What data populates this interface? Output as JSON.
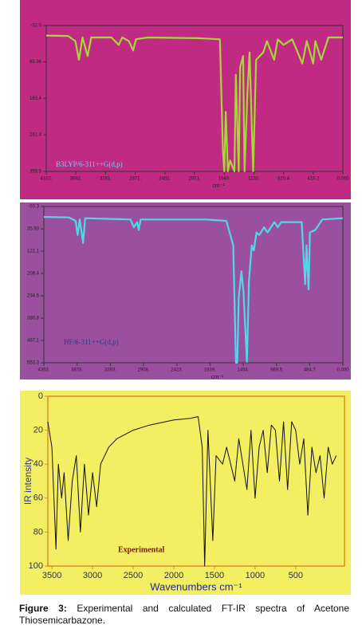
{
  "chart_data": [
    {
      "type": "line",
      "annotation": "B3LYP/6-311++G(d,p)",
      "x_label": "cm⁻¹",
      "color": "#a6d63a",
      "background": "#c02a83",
      "xlim": [
        4102,
        0
      ],
      "ylim": [
        359.5,
        -32
      ],
      "xticks": [
        {
          "value": 4102,
          "label": "4102."
        },
        {
          "value": 3692,
          "label": "3692."
        },
        {
          "value": 3281,
          "label": "3281."
        },
        {
          "value": 2871,
          "label": "2871."
        },
        {
          "value": 2461,
          "label": "2461."
        },
        {
          "value": 2051,
          "label": "2051."
        },
        {
          "value": 1640,
          "label": "1640."
        },
        {
          "value": 1230,
          "label": "1230."
        },
        820.4,
        410.2,
        {
          "value": 0,
          "label": "0.000"
        }
      ],
      "yticks": [
        {
          "value": -32,
          "label": "-32.0"
        },
        65.36,
        163.4,
        261.4,
        359.5
      ],
      "x": [
        4102,
        3800,
        3700,
        3650,
        3600,
        3530,
        3480,
        3200,
        3100,
        3050,
        2960,
        2900,
        2860,
        2700,
        2000,
        1700,
        1660,
        1640,
        1620,
        1590,
        1560,
        1500,
        1480,
        1440,
        1420,
        1380,
        1360,
        1320,
        1290,
        1240,
        1200,
        1100,
        1050,
        950,
        900,
        820,
        700,
        560,
        500,
        410,
        380,
        300,
        200,
        0
      ],
      "values": [
        -5,
        -4,
        10,
        60,
        0,
        50,
        0,
        0,
        20,
        0,
        10,
        35,
        5,
        0,
        2,
        5,
        300,
        359,
        200,
        359,
        330,
        359,
        100,
        359,
        80,
        50,
        359,
        150,
        40,
        359,
        60,
        40,
        10,
        60,
        5,
        20,
        5,
        70,
        10,
        70,
        10,
        60,
        0,
        0
      ]
    },
    {
      "type": "line",
      "annotation": "HF/6-311++G(d,p)",
      "x_label": "cm⁻¹",
      "color": "#4fd8ea",
      "background": "#9a509f",
      "xlim": [
        4363,
        0
      ],
      "ylim": [
        553.3,
        -50.3
      ],
      "xticks": [
        {
          "value": 4363,
          "label": "4363."
        },
        {
          "value": 3878,
          "label": "3878."
        },
        {
          "value": 3393,
          "label": "3393."
        },
        {
          "value": 2908,
          "label": "2908."
        },
        {
          "value": 2423,
          "label": "2423."
        },
        {
          "value": 1939,
          "label": "1939."
        },
        {
          "value": 1454,
          "label": "1454."
        },
        969.5,
        484.7,
        {
          "value": 0,
          "label": "0.000"
        }
      ],
      "yticks": [
        -50.3,
        35.93,
        122.1,
        208.4,
        294.6,
        380.8,
        467.1,
        553.3
      ],
      "x": [
        4363,
        4000,
        3900,
        3870,
        3840,
        3790,
        3760,
        3100,
        3050,
        3000,
        2980,
        2950,
        2000,
        1700,
        1600,
        1560,
        1540,
        1520,
        1480,
        1450,
        1400,
        1370,
        1330,
        1300,
        1260,
        1220,
        1150,
        1100,
        1000,
        950,
        900,
        600,
        550,
        530,
        500,
        480,
        400,
        300,
        0
      ],
      "values": [
        -10,
        -8,
        5,
        60,
        0,
        90,
        -5,
        0,
        30,
        10,
        40,
        0,
        0,
        5,
        100,
        553,
        553,
        300,
        200,
        280,
        550,
        240,
        100,
        120,
        50,
        60,
        30,
        50,
        10,
        30,
        10,
        10,
        250,
        100,
        270,
        50,
        40,
        0,
        -5
      ]
    },
    {
      "type": "line",
      "annotation": "Experimental",
      "x_label": "Wavenumbers cm⁻¹",
      "y_label": "IR intensity",
      "color": "#111111",
      "background": "#f4ee62",
      "xlim": [
        3550,
        -100
      ],
      "ylim": [
        100,
        0
      ],
      "xticks": [
        3500,
        3000,
        2500,
        2000,
        1500,
        1000,
        500
      ],
      "yticks": [
        0,
        20,
        40,
        60,
        80,
        100
      ],
      "x": [
        3550,
        3500,
        3450,
        3420,
        3380,
        3350,
        3300,
        3250,
        3200,
        3150,
        3100,
        3050,
        3000,
        2950,
        2900,
        2800,
        2700,
        2500,
        2300,
        2000,
        1800,
        1700,
        1650,
        1620,
        1580,
        1520,
        1480,
        1400,
        1350,
        1250,
        1200,
        1100,
        1050,
        1000,
        950,
        900,
        850,
        800,
        750,
        700,
        650,
        600,
        550,
        500,
        450,
        400,
        350,
        300,
        250,
        200,
        150,
        100,
        50,
        0
      ],
      "values": [
        15,
        30,
        90,
        40,
        60,
        45,
        85,
        50,
        35,
        80,
        40,
        70,
        45,
        65,
        40,
        30,
        25,
        20,
        17,
        14,
        13,
        12,
        30,
        100,
        20,
        85,
        35,
        40,
        30,
        50,
        25,
        55,
        20,
        60,
        30,
        20,
        45,
        17,
        20,
        50,
        15,
        55,
        15,
        20,
        40,
        25,
        70,
        30,
        45,
        35,
        60,
        30,
        40,
        35
      ]
    }
  ],
  "caption_label": "Figure 3:",
  "caption": "Experimental and calculated FT-IR spectra of Acetone Thiosemicarbazone."
}
